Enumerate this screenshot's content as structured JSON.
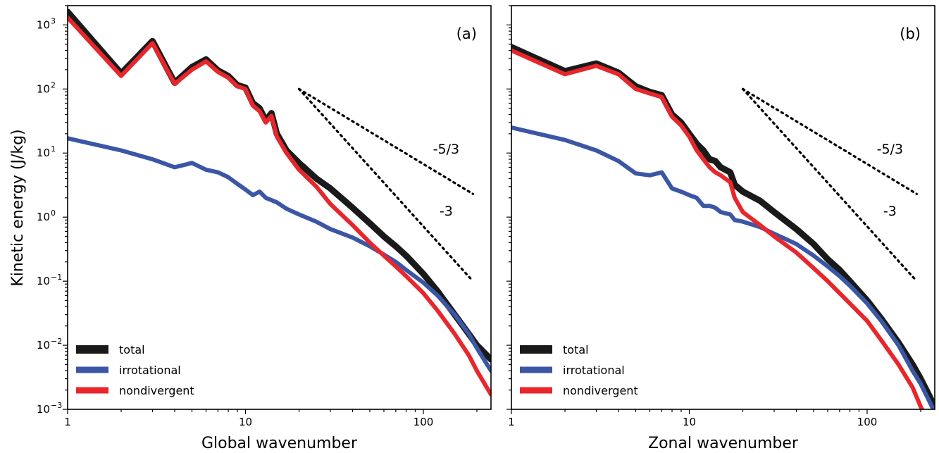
{
  "chart_data": {
    "type": "line",
    "ylabel": "Kinetic energy (J/kg)",
    "x_scale": "log",
    "y_scale": "log",
    "grid": false,
    "ylim": [
      0.001,
      2000
    ],
    "y_ticks": [
      {
        "value": 0.001,
        "base": "10",
        "exp": "−3"
      },
      {
        "value": 0.01,
        "base": "10",
        "exp": "−2"
      },
      {
        "value": 0.1,
        "base": "10",
        "exp": "−1"
      },
      {
        "value": 1,
        "base": "10",
        "exp": "0"
      },
      {
        "value": 10,
        "base": "10",
        "exp": "1"
      },
      {
        "value": 100,
        "base": "10",
        "exp": "2"
      },
      {
        "value": 1000,
        "base": "10",
        "exp": "3"
      }
    ],
    "legend": {
      "placement": "lower-left",
      "entries": [
        "total",
        "irrotational",
        "nondivergent"
      ]
    },
    "series_colors": {
      "total": "#1a1a1a",
      "irrotational": "#3a56a5",
      "nondivergent": "#e8262b"
    },
    "panels": [
      {
        "panel_label": "(a)",
        "xlabel": "Global wavenumber",
        "xlim": [
          1,
          240
        ],
        "x_ticks": [
          {
            "value": 1,
            "label": "1"
          },
          {
            "value": 10,
            "label": "10"
          },
          {
            "value": 100,
            "label": "100"
          }
        ],
        "reference_slopes": [
          {
            "label": "-5/3",
            "points": [
              [
                20,
                100
              ],
              [
                190,
                2.3
              ]
            ]
          },
          {
            "label": "-3",
            "points": [
              [
                20,
                100
              ],
              [
                190,
                0.1
              ]
            ]
          }
        ],
        "series": [
          {
            "name": "total",
            "points": [
              [
                1,
                1600
              ],
              [
                2,
                175
              ],
              [
                3,
                560
              ],
              [
                4,
                125
              ],
              [
                5,
                220
              ],
              [
                6,
                290
              ],
              [
                7,
                195
              ],
              [
                8,
                160
              ],
              [
                9,
                115
              ],
              [
                10,
                105
              ],
              [
                11,
                60
              ],
              [
                12,
                50
              ],
              [
                13,
                32
              ],
              [
                14,
                42
              ],
              [
                15,
                20
              ],
              [
                17,
                11
              ],
              [
                20,
                7
              ],
              [
                25,
                4
              ],
              [
                30,
                2.8
              ],
              [
                40,
                1.4
              ],
              [
                50,
                0.8
              ],
              [
                60,
                0.5
              ],
              [
                70,
                0.35
              ],
              [
                80,
                0.25
              ],
              [
                100,
                0.13
              ],
              [
                120,
                0.07
              ],
              [
                150,
                0.03
              ],
              [
                180,
                0.015
              ],
              [
                200,
                0.01
              ],
              [
                240,
                0.006
              ]
            ]
          },
          {
            "name": "irrotational",
            "points": [
              [
                1,
                17
              ],
              [
                2,
                11
              ],
              [
                3,
                8
              ],
              [
                4,
                6
              ],
              [
                5,
                7
              ],
              [
                6,
                5.5
              ],
              [
                7,
                5
              ],
              [
                8,
                4.2
              ],
              [
                9,
                3.3
              ],
              [
                10,
                2.7
              ],
              [
                11,
                2.2
              ],
              [
                12,
                2.5
              ],
              [
                13,
                2
              ],
              [
                15,
                1.7
              ],
              [
                17,
                1.35
              ],
              [
                20,
                1.1
              ],
              [
                25,
                0.85
              ],
              [
                30,
                0.65
              ],
              [
                40,
                0.48
              ],
              [
                50,
                0.35
              ],
              [
                60,
                0.26
              ],
              [
                70,
                0.2
              ],
              [
                80,
                0.15
              ],
              [
                100,
                0.095
              ],
              [
                120,
                0.06
              ],
              [
                150,
                0.03
              ],
              [
                180,
                0.015
              ],
              [
                200,
                0.009
              ],
              [
                240,
                0.004
              ]
            ]
          },
          {
            "name": "nondivergent",
            "points": [
              [
                1,
                1300
              ],
              [
                2,
                160
              ],
              [
                3,
                520
              ],
              [
                4,
                120
              ],
              [
                5,
                200
              ],
              [
                6,
                270
              ],
              [
                7,
                185
              ],
              [
                8,
                150
              ],
              [
                9,
                110
              ],
              [
                10,
                100
              ],
              [
                11,
                55
              ],
              [
                12,
                45
              ],
              [
                13,
                30
              ],
              [
                14,
                38
              ],
              [
                15,
                18
              ],
              [
                17,
                10
              ],
              [
                20,
                5.5
              ],
              [
                25,
                3
              ],
              [
                30,
                1.6
              ],
              [
                40,
                0.75
              ],
              [
                50,
                0.4
              ],
              [
                60,
                0.25
              ],
              [
                70,
                0.17
              ],
              [
                80,
                0.12
              ],
              [
                100,
                0.065
              ],
              [
                120,
                0.035
              ],
              [
                150,
                0.015
              ],
              [
                180,
                0.007
              ],
              [
                200,
                0.004
              ],
              [
                240,
                0.0017
              ]
            ]
          }
        ]
      },
      {
        "panel_label": "(b)",
        "xlabel": "Zonal wavenumber",
        "xlim": [
          1,
          240
        ],
        "x_ticks": [
          {
            "value": 1,
            "label": "1"
          },
          {
            "value": 10,
            "label": "10"
          },
          {
            "value": 100,
            "label": "100"
          }
        ],
        "reference_slopes": [
          {
            "label": "-5/3",
            "points": [
              [
                20,
                100
              ],
              [
                190,
                2.3
              ]
            ]
          },
          {
            "label": "-3",
            "points": [
              [
                20,
                100
              ],
              [
                190,
                0.1
              ]
            ]
          }
        ],
        "series": [
          {
            "name": "total",
            "points": [
              [
                1,
                450
              ],
              [
                2,
                190
              ],
              [
                3,
                250
              ],
              [
                4,
                180
              ],
              [
                5,
                110
              ],
              [
                6,
                90
              ],
              [
                7,
                80
              ],
              [
                8,
                40
              ],
              [
                9,
                30
              ],
              [
                10,
                20
              ],
              [
                11,
                14
              ],
              [
                12,
                11
              ],
              [
                13,
                8
              ],
              [
                14,
                7.5
              ],
              [
                15,
                6
              ],
              [
                17,
                5
              ],
              [
                18,
                3.2
              ],
              [
                20,
                2.5
              ],
              [
                25,
                1.8
              ],
              [
                30,
                1.2
              ],
              [
                40,
                0.65
              ],
              [
                50,
                0.38
              ],
              [
                60,
                0.22
              ],
              [
                70,
                0.15
              ],
              [
                80,
                0.1
              ],
              [
                100,
                0.05
              ],
              [
                120,
                0.026
              ],
              [
                150,
                0.011
              ],
              [
                180,
                0.005
              ],
              [
                200,
                0.003
              ],
              [
                240,
                0.0011
              ]
            ]
          },
          {
            "name": "irrotational",
            "points": [
              [
                1,
                25
              ],
              [
                2,
                16
              ],
              [
                3,
                11
              ],
              [
                4,
                7.5
              ],
              [
                5,
                4.8
              ],
              [
                6,
                4.5
              ],
              [
                7,
                5
              ],
              [
                8,
                2.8
              ],
              [
                9,
                2.5
              ],
              [
                10,
                2.2
              ],
              [
                11,
                2
              ],
              [
                12,
                1.5
              ],
              [
                13,
                1.5
              ],
              [
                14,
                1.4
              ],
              [
                15,
                1.2
              ],
              [
                17,
                1.1
              ],
              [
                18,
                0.9
              ],
              [
                20,
                0.85
              ],
              [
                25,
                0.7
              ],
              [
                30,
                0.55
              ],
              [
                40,
                0.38
              ],
              [
                50,
                0.25
              ],
              [
                60,
                0.17
              ],
              [
                70,
                0.12
              ],
              [
                80,
                0.085
              ],
              [
                100,
                0.045
              ],
              [
                120,
                0.024
              ],
              [
                150,
                0.01
              ],
              [
                180,
                0.004
              ],
              [
                200,
                0.0025
              ],
              [
                240,
                0.0009
              ]
            ]
          },
          {
            "name": "nondivergent",
            "points": [
              [
                1,
                400
              ],
              [
                2,
                170
              ],
              [
                3,
                230
              ],
              [
                4,
                170
              ],
              [
                5,
                100
              ],
              [
                6,
                85
              ],
              [
                7,
                75
              ],
              [
                8,
                37
              ],
              [
                9,
                27
              ],
              [
                10,
                18
              ],
              [
                11,
                11
              ],
              [
                12,
                8
              ],
              [
                13,
                6
              ],
              [
                14,
                5
              ],
              [
                15,
                4.5
              ],
              [
                17,
                3.5
              ],
              [
                18,
                2
              ],
              [
                20,
                1.2
              ],
              [
                25,
                0.75
              ],
              [
                30,
                0.5
              ],
              [
                40,
                0.28
              ],
              [
                50,
                0.16
              ],
              [
                60,
                0.1
              ],
              [
                70,
                0.065
              ],
              [
                80,
                0.045
              ],
              [
                100,
                0.024
              ],
              [
                120,
                0.012
              ],
              [
                150,
                0.005
              ],
              [
                180,
                0.0022
              ],
              [
                200,
                0.0011
              ],
              [
                240,
                0.0004
              ]
            ]
          }
        ]
      }
    ]
  }
}
